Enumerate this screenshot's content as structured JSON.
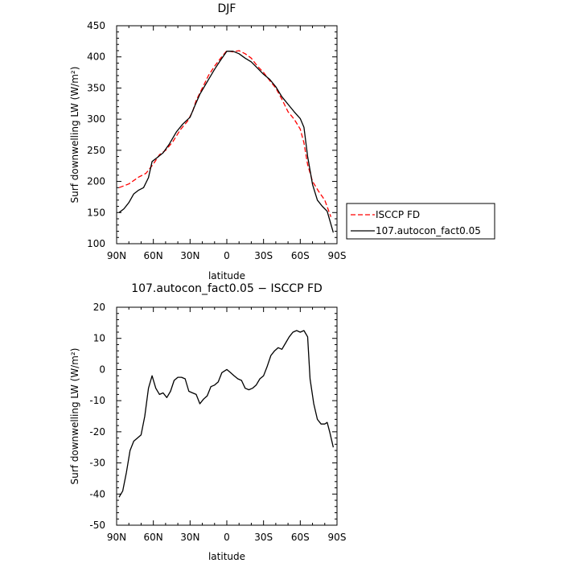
{
  "chart_data": [
    {
      "type": "line",
      "title": "DJF",
      "xlabel": "latitude",
      "ylabel": "Surf downwelling LW (W/m²)",
      "x_categories": [
        "90N",
        "60N",
        "30N",
        "0",
        "30S",
        "60S",
        "90S"
      ],
      "xlim": [
        90,
        -90
      ],
      "ylim": [
        100,
        450
      ],
      "y_ticks": [
        100,
        150,
        200,
        250,
        300,
        350,
        400,
        450
      ],
      "legend_placement": "right",
      "grid": false,
      "series": [
        {
          "name": "ISCCP FD",
          "color": "#ff0000",
          "dash": "dashed",
          "points": [
            [
              88,
              190
            ],
            [
              80,
              196
            ],
            [
              72,
              207
            ],
            [
              66,
              213
            ],
            [
              60,
              228
            ],
            [
              55,
              243
            ],
            [
              50,
              250
            ],
            [
              44,
              264
            ],
            [
              38,
              283
            ],
            [
              32,
              297
            ],
            [
              28,
              312
            ],
            [
              25,
              330
            ],
            [
              20,
              350
            ],
            [
              15,
              370
            ],
            [
              10,
              385
            ],
            [
              5,
              398
            ],
            [
              0,
              410
            ],
            [
              -5,
              408
            ],
            [
              -10,
              410
            ],
            [
              -15,
              405
            ],
            [
              -20,
              398
            ],
            [
              -25,
              385
            ],
            [
              -30,
              375
            ],
            [
              -35,
              362
            ],
            [
              -40,
              350
            ],
            [
              -45,
              332
            ],
            [
              -50,
              312
            ],
            [
              -55,
              300
            ],
            [
              -60,
              284
            ],
            [
              -63,
              262
            ],
            [
              -66,
              227
            ],
            [
              -70,
              200
            ],
            [
              -75,
              184
            ],
            [
              -80,
              170
            ],
            [
              -85,
              143
            ]
          ]
        },
        {
          "name": "107.autocon_fact0.05",
          "color": "#000000",
          "dash": "solid",
          "points": [
            [
              88,
              150
            ],
            [
              84,
              156
            ],
            [
              80,
              166
            ],
            [
              76,
              180
            ],
            [
              72,
              186
            ],
            [
              68,
              190
            ],
            [
              64,
              206
            ],
            [
              61,
              232
            ],
            [
              57,
              238
            ],
            [
              52,
              246
            ],
            [
              47,
              260
            ],
            [
              41,
              280
            ],
            [
              36,
              292
            ],
            [
              30,
              303
            ],
            [
              26,
              322
            ],
            [
              22,
              340
            ],
            [
              16,
              360
            ],
            [
              10,
              380
            ],
            [
              5,
              395
            ],
            [
              0,
              409
            ],
            [
              -5,
              409
            ],
            [
              -10,
              405
            ],
            [
              -15,
              398
            ],
            [
              -20,
              392
            ],
            [
              -25,
              382
            ],
            [
              -30,
              372
            ],
            [
              -35,
              364
            ],
            [
              -40,
              352
            ],
            [
              -45,
              336
            ],
            [
              -50,
              324
            ],
            [
              -55,
              312
            ],
            [
              -60,
              301
            ],
            [
              -63,
              287
            ],
            [
              -66,
              240
            ],
            [
              -70,
              195
            ],
            [
              -74,
              170
            ],
            [
              -78,
              160
            ],
            [
              -82,
              152
            ],
            [
              -87,
              118
            ]
          ]
        }
      ]
    },
    {
      "type": "line",
      "title": "107.autocon_fact0.05 − ISCCP FD",
      "xlabel": "latitude",
      "ylabel": "Surf downwelling LW (W/m²)",
      "x_categories": [
        "90N",
        "60N",
        "30N",
        "0",
        "30S",
        "60S",
        "90S"
      ],
      "xlim": [
        90,
        -90
      ],
      "ylim": [
        -50,
        20
      ],
      "y_ticks": [
        -50,
        -40,
        -30,
        -20,
        -10,
        0,
        10,
        20
      ],
      "grid": false,
      "series": [
        {
          "color": "#000000",
          "dash": "solid",
          "points": [
            [
              88,
              -41
            ],
            [
              85,
              -39
            ],
            [
              82,
              -33
            ],
            [
              79,
              -26
            ],
            [
              76,
              -23
            ],
            [
              73,
              -22
            ],
            [
              70,
              -21
            ],
            [
              67,
              -15
            ],
            [
              64,
              -6
            ],
            [
              61,
              -2
            ],
            [
              58,
              -6
            ],
            [
              55,
              -8
            ],
            [
              52,
              -7.5
            ],
            [
              49,
              -9
            ],
            [
              46,
              -7
            ],
            [
              43,
              -3.5
            ],
            [
              40,
              -2.5
            ],
            [
              37,
              -2.5
            ],
            [
              34,
              -3
            ],
            [
              31,
              -7
            ],
            [
              28,
              -7.5
            ],
            [
              25,
              -8
            ],
            [
              22,
              -11
            ],
            [
              19,
              -9.5
            ],
            [
              16,
              -8.5
            ],
            [
              13,
              -5.5
            ],
            [
              10,
              -5
            ],
            [
              7,
              -4
            ],
            [
              4,
              -1
            ],
            [
              0,
              0
            ],
            [
              -3,
              -1
            ],
            [
              -6,
              -2
            ],
            [
              -9,
              -3
            ],
            [
              -12,
              -3.5
            ],
            [
              -15,
              -6
            ],
            [
              -18,
              -6.5
            ],
            [
              -21,
              -6
            ],
            [
              -24,
              -5
            ],
            [
              -27,
              -3
            ],
            [
              -30,
              -2
            ],
            [
              -33,
              1
            ],
            [
              -36,
              4.5
            ],
            [
              -39,
              6
            ],
            [
              -42,
              7
            ],
            [
              -45,
              6.5
            ],
            [
              -48,
              8.5
            ],
            [
              -51,
              10.5
            ],
            [
              -54,
              12
            ],
            [
              -57,
              12.5
            ],
            [
              -60,
              12
            ],
            [
              -63,
              12.5
            ],
            [
              -66,
              10.5
            ],
            [
              -68,
              -3
            ],
            [
              -71,
              -11
            ],
            [
              -74,
              -16
            ],
            [
              -77,
              -17.5
            ],
            [
              -80,
              -17.5
            ],
            [
              -82,
              -17
            ],
            [
              -84,
              -20
            ],
            [
              -87,
              -25
            ]
          ]
        }
      ]
    }
  ]
}
